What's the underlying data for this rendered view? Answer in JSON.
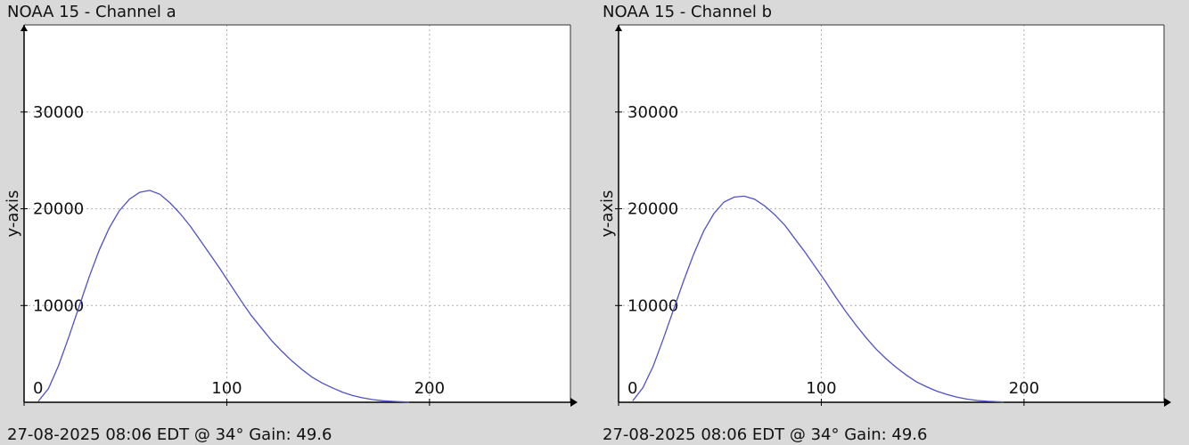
{
  "chart_data": [
    {
      "type": "line",
      "title": "NOAA 15 - Channel a",
      "footer": "27-08-2025 08:06 EDT @ 34° Gain: 49.6",
      "ylabel": "y-axis",
      "xlabel": "",
      "xlim": [
        0,
        255
      ],
      "ylim": [
        0,
        39000
      ],
      "x_ticks": [
        0,
        100,
        200
      ],
      "x_tick_labels": [
        "0",
        "100",
        "200"
      ],
      "y_ticks": [
        10000,
        20000,
        30000
      ],
      "y_tick_labels": [
        "10000",
        "20000",
        "30000"
      ],
      "grid": true,
      "line_color": "#5050c8",
      "series": [
        {
          "x": [
            7,
            12,
            17,
            22,
            27,
            32,
            37,
            42,
            47,
            52,
            57,
            62,
            67,
            72,
            77,
            82,
            87,
            92,
            97,
            102,
            107,
            112,
            117,
            122,
            127,
            132,
            137,
            142,
            147,
            152,
            157,
            162,
            167,
            172,
            177,
            182,
            190
          ],
          "values": [
            100,
            1400,
            3800,
            6700,
            9800,
            12900,
            15700,
            18000,
            19800,
            21000,
            21700,
            21900,
            21500,
            20600,
            19500,
            18200,
            16700,
            15200,
            13700,
            12100,
            10500,
            9000,
            7700,
            6400,
            5300,
            4300,
            3400,
            2600,
            2000,
            1500,
            1050,
            700,
            460,
            280,
            160,
            90,
            20
          ]
        }
      ]
    },
    {
      "type": "line",
      "title": "NOAA 15 - Channel b",
      "footer": "27-08-2025 08:06 EDT @ 34° Gain: 49.6",
      "ylabel": "y-axis",
      "xlabel": "",
      "xlim": [
        0,
        255
      ],
      "ylim": [
        0,
        39000
      ],
      "x_ticks": [
        0,
        100,
        200
      ],
      "x_tick_labels": [
        "0",
        "100",
        "200"
      ],
      "y_ticks": [
        10000,
        20000,
        30000
      ],
      "y_tick_labels": [
        "10000",
        "20000",
        "30000"
      ],
      "grid": true,
      "line_color": "#5050c8",
      "series": [
        {
          "x": [
            7,
            12,
            17,
            22,
            27,
            32,
            37,
            42,
            47,
            52,
            57,
            62,
            67,
            72,
            77,
            82,
            87,
            92,
            97,
            102,
            107,
            112,
            117,
            122,
            127,
            132,
            137,
            142,
            147,
            152,
            157,
            162,
            167,
            172,
            177,
            182,
            190
          ],
          "values": [
            150,
            1500,
            3700,
            6500,
            9500,
            12500,
            15300,
            17700,
            19500,
            20700,
            21200,
            21300,
            21000,
            20300,
            19400,
            18300,
            16900,
            15500,
            14000,
            12500,
            10900,
            9400,
            8000,
            6700,
            5500,
            4500,
            3600,
            2800,
            2100,
            1600,
            1150,
            800,
            520,
            320,
            180,
            100,
            30
          ]
        }
      ]
    }
  ]
}
